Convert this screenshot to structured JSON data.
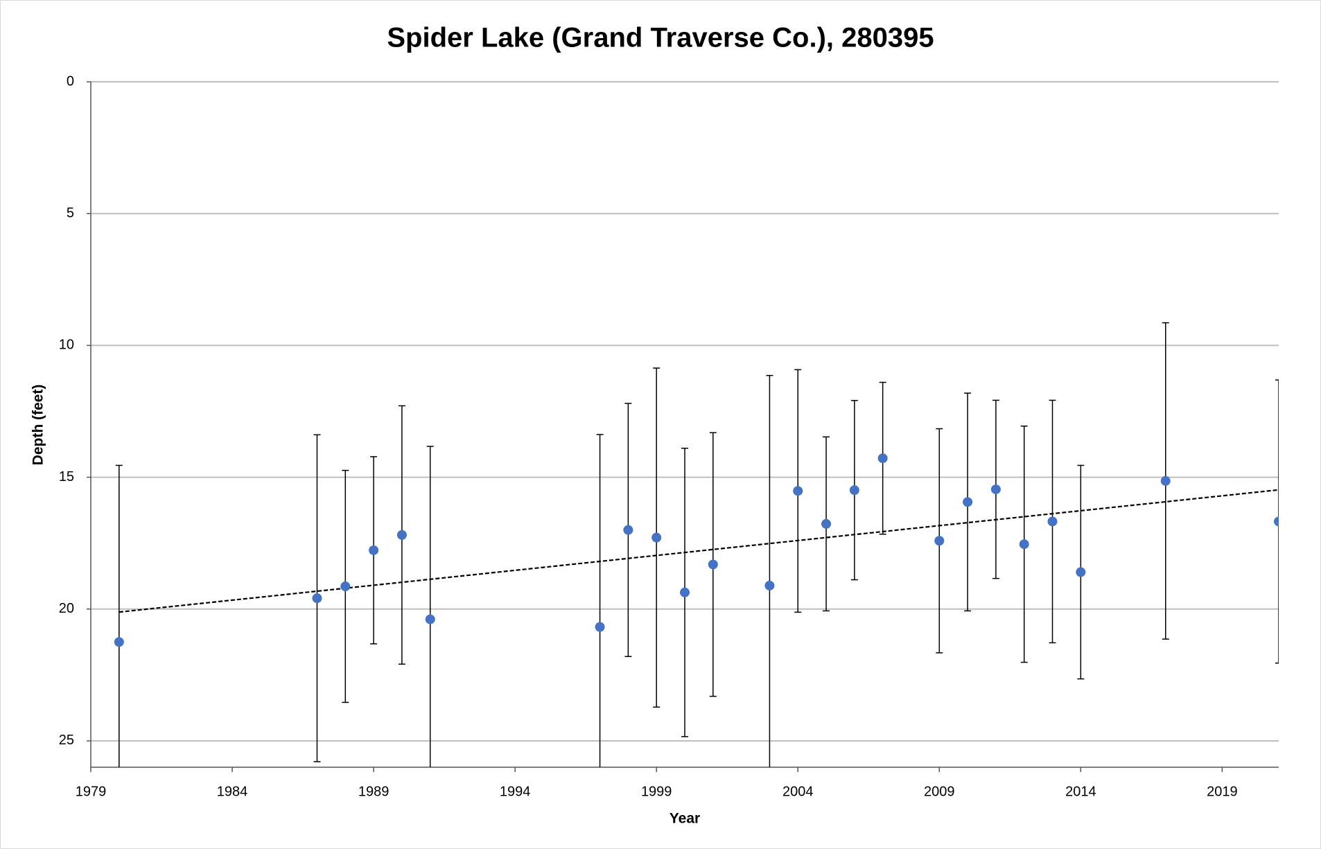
{
  "chart_data": {
    "type": "scatter",
    "title": "Spider Lake (Grand Traverse Co.), 280395",
    "x_label": "Year",
    "y_label": "Depth (feet)",
    "series": [
      {
        "color": "#4472c4",
        "x": [
          1980,
          1987,
          1988,
          1989,
          1990,
          1991,
          1997,
          1998,
          1999,
          2000,
          2001,
          2003,
          2004,
          2005,
          2006,
          2007,
          2009,
          2010,
          2011,
          2012,
          2013,
          2014,
          2017,
          2021
        ],
        "values": [
          21.25,
          19.59,
          19.14,
          17.77,
          17.19,
          20.39,
          20.68,
          17.0,
          17.29,
          19.37,
          18.31,
          19.11,
          15.52,
          16.77,
          15.49,
          14.28,
          17.41,
          15.94,
          15.46,
          17.54,
          16.68,
          18.6,
          15.14,
          16.68
        ],
        "errors": [
          6.7,
          6.2,
          4.4,
          3.55,
          4.9,
          6.56,
          7.3,
          4.8,
          6.43,
          5.47,
          5.0,
          7.97,
          4.6,
          3.3,
          3.4,
          2.88,
          4.25,
          4.13,
          3.38,
          4.48,
          4.6,
          4.05,
          6.0,
          5.37
        ]
      }
    ],
    "trendline": "linear",
    "xlim": [
      1979,
      2021
    ],
    "xticks": [
      1979,
      1984,
      1989,
      1994,
      1999,
      2004,
      2009,
      2014,
      2019
    ],
    "ylim": [
      0,
      26
    ],
    "yticks": [
      0,
      5,
      10,
      15,
      20,
      25
    ],
    "y_inverted": true,
    "grid": true
  }
}
